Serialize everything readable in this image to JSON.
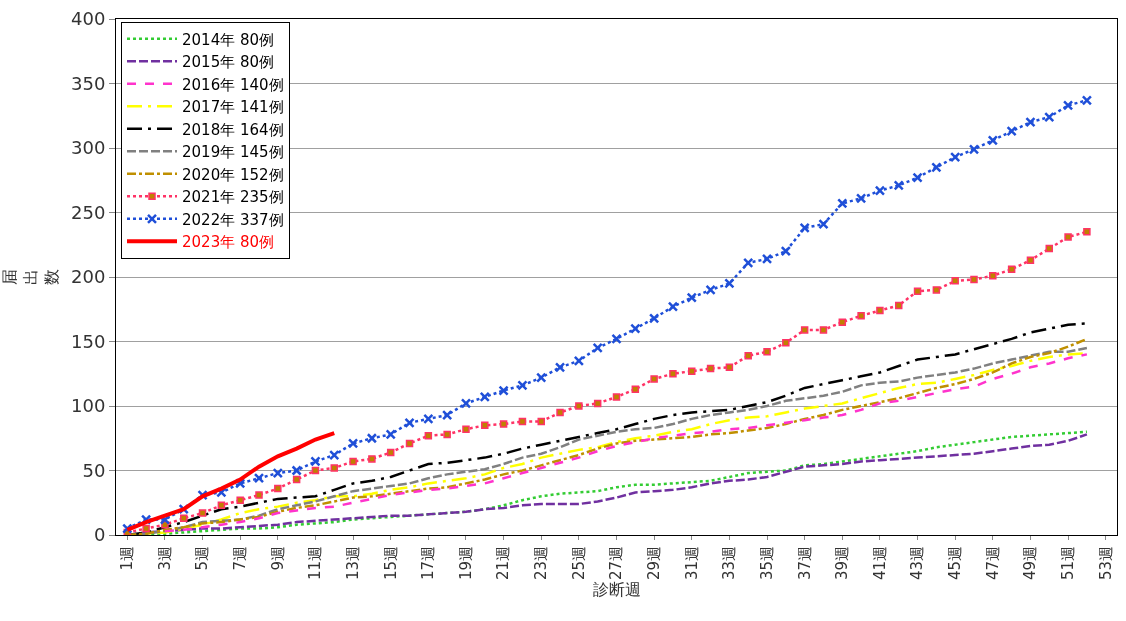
{
  "chart_data": {
    "type": "line",
    "xlabel": "診断週",
    "ylabel": "届出数",
    "categories": [
      "1週",
      null,
      "3週",
      null,
      "5週",
      null,
      "7週",
      null,
      "9週",
      null,
      "11週",
      null,
      "13週",
      null,
      "15週",
      null,
      "17週",
      null,
      "19週",
      null,
      "21週",
      null,
      "23週",
      null,
      "25週",
      null,
      "27週",
      null,
      "29週",
      null,
      "31週",
      null,
      "33週",
      null,
      "35週",
      null,
      "37週",
      null,
      "39週",
      null,
      "41週",
      null,
      "43週",
      null,
      "45週",
      null,
      "47週",
      null,
      "49週",
      null,
      "51週",
      null,
      "53週"
    ],
    "ylim": [
      0,
      400
    ],
    "yticks": [
      0,
      50,
      100,
      150,
      200,
      250,
      300,
      350,
      400
    ],
    "grid": "y",
    "legend": "top left",
    "series": [
      {
        "name": "2014年 80例",
        "color": "#33cc33",
        "line_style": "dotted",
        "marker": "none",
        "values": [
          0,
          1,
          1,
          2,
          3,
          4,
          5,
          5,
          6,
          8,
          9,
          10,
          12,
          13,
          14,
          15,
          16,
          17,
          18,
          20,
          23,
          27,
          30,
          32,
          33,
          34,
          37,
          39,
          39,
          40,
          41,
          42,
          45,
          48,
          49,
          50,
          54,
          55,
          57,
          59,
          61,
          63,
          65,
          68,
          70,
          72,
          74,
          76,
          77,
          78,
          79,
          80,
          null
        ]
      },
      {
        "name": "2015年 80例",
        "color": "#7030a0",
        "line_style": "longdash",
        "marker": "none",
        "values": [
          0,
          2,
          3,
          4,
          5,
          5,
          6,
          7,
          8,
          10,
          11,
          12,
          13,
          14,
          15,
          15,
          16,
          17,
          18,
          20,
          21,
          23,
          24,
          24,
          24,
          26,
          29,
          33,
          34,
          35,
          37,
          40,
          42,
          43,
          45,
          49,
          53,
          54,
          55,
          57,
          58,
          59,
          60,
          61,
          62,
          63,
          65,
          67,
          69,
          70,
          73,
          78,
          null
        ]
      },
      {
        "name": "2016年 140例",
        "color": "#ff33cc",
        "line_style": "dashed",
        "marker": "none",
        "values": [
          null,
          null,
          3,
          4,
          6,
          8,
          10,
          13,
          17,
          19,
          21,
          22,
          25,
          28,
          31,
          33,
          35,
          36,
          38,
          40,
          44,
          48,
          52,
          56,
          60,
          65,
          69,
          72,
          75,
          77,
          79,
          80,
          82,
          83,
          85,
          87,
          89,
          91,
          93,
          97,
          102,
          104,
          107,
          110,
          113,
          115,
          121,
          125,
          130,
          133,
          137,
          140,
          null
        ]
      },
      {
        "name": "2017年 141例",
        "color": "#ffff00",
        "line_style": "longdashdot",
        "marker": "none",
        "values": [
          0,
          1,
          2,
          5,
          8,
          12,
          17,
          20,
          22,
          25,
          27,
          30,
          30,
          32,
          35,
          37,
          40,
          42,
          44,
          47,
          52,
          55,
          60,
          63,
          66,
          68,
          72,
          75,
          77,
          80,
          82,
          86,
          89,
          91,
          92,
          95,
          98,
          100,
          102,
          106,
          110,
          114,
          117,
          118,
          121,
          124,
          128,
          131,
          135,
          138,
          140,
          141,
          null
        ]
      },
      {
        "name": "2018年 164例",
        "color": "#000000",
        "line_style": "longdashdot",
        "marker": "none",
        "values": [
          0,
          2,
          6,
          10,
          15,
          20,
          22,
          25,
          28,
          29,
          30,
          35,
          40,
          42,
          45,
          50,
          55,
          56,
          58,
          60,
          63,
          67,
          70,
          73,
          76,
          79,
          82,
          86,
          90,
          93,
          95,
          96,
          97,
          100,
          103,
          108,
          114,
          117,
          120,
          123,
          126,
          131,
          136,
          138,
          140,
          144,
          148,
          152,
          157,
          160,
          163,
          164,
          null
        ]
      },
      {
        "name": "2019年 145例",
        "color": "#808080",
        "line_style": "longdash",
        "marker": "none",
        "values": [
          0,
          1,
          3,
          6,
          10,
          11,
          12,
          15,
          20,
          23,
          26,
          30,
          34,
          36,
          38,
          40,
          44,
          47,
          49,
          51,
          55,
          60,
          63,
          68,
          74,
          77,
          80,
          82,
          83,
          86,
          90,
          93,
          95,
          97,
          100,
          104,
          106,
          108,
          111,
          116,
          118,
          119,
          122,
          124,
          126,
          129,
          133,
          136,
          139,
          142,
          142,
          145,
          null
        ]
      },
      {
        "name": "2020年 152例",
        "color": "#bf8f00",
        "line_style": "dashdot",
        "marker": "none",
        "values": [
          0,
          1,
          4,
          6,
          9,
          10,
          12,
          14,
          18,
          21,
          23,
          26,
          29,
          30,
          32,
          34,
          36,
          37,
          40,
          43,
          47,
          50,
          54,
          58,
          62,
          67,
          71,
          73,
          74,
          75,
          76,
          78,
          79,
          81,
          83,
          86,
          90,
          93,
          97,
          100,
          103,
          106,
          110,
          114,
          117,
          121,
          126,
          133,
          138,
          141,
          146,
          152,
          null
        ]
      },
      {
        "name": "2021年 235例",
        "color": "#ff3366",
        "line_style": "dotted",
        "marker": "square",
        "values": [
          2,
          5,
          8,
          13,
          17,
          23,
          27,
          31,
          36,
          43,
          50,
          52,
          57,
          59,
          64,
          71,
          77,
          78,
          82,
          85,
          86,
          88,
          88,
          95,
          100,
          102,
          107,
          113,
          121,
          125,
          127,
          129,
          130,
          139,
          142,
          149,
          159,
          159,
          165,
          170,
          174,
          178,
          189,
          190,
          197,
          198,
          201,
          206,
          213,
          222,
          231,
          235,
          null
        ]
      },
      {
        "name": "2022年 337例",
        "color": "#1f4fd8",
        "line_style": "dotted",
        "marker": "cross",
        "values": [
          5,
          12,
          12,
          20,
          31,
          33,
          40,
          44,
          48,
          50,
          57,
          62,
          71,
          75,
          78,
          87,
          90,
          93,
          102,
          107,
          112,
          116,
          122,
          130,
          135,
          145,
          152,
          160,
          168,
          177,
          184,
          190,
          195,
          211,
          214,
          220,
          238,
          241,
          257,
          261,
          267,
          271,
          277,
          285,
          293,
          299,
          306,
          313,
          320,
          324,
          333,
          337,
          null
        ]
      },
      {
        "name": "2023年 80例",
        "color": "#ff0000",
        "line_style": "solid",
        "marker": "none",
        "values": [
          4,
          10,
          15,
          20,
          30,
          36,
          43,
          53,
          61,
          67,
          74,
          79,
          null,
          null,
          null,
          null,
          null,
          null,
          null,
          null,
          null,
          null,
          null,
          null,
          null,
          null,
          null,
          null,
          null,
          null,
          null,
          null,
          null,
          null,
          null,
          null,
          null,
          null,
          null,
          null,
          null,
          null,
          null,
          null,
          null,
          null,
          null,
          null,
          null,
          null,
          null,
          null,
          null
        ]
      }
    ]
  }
}
